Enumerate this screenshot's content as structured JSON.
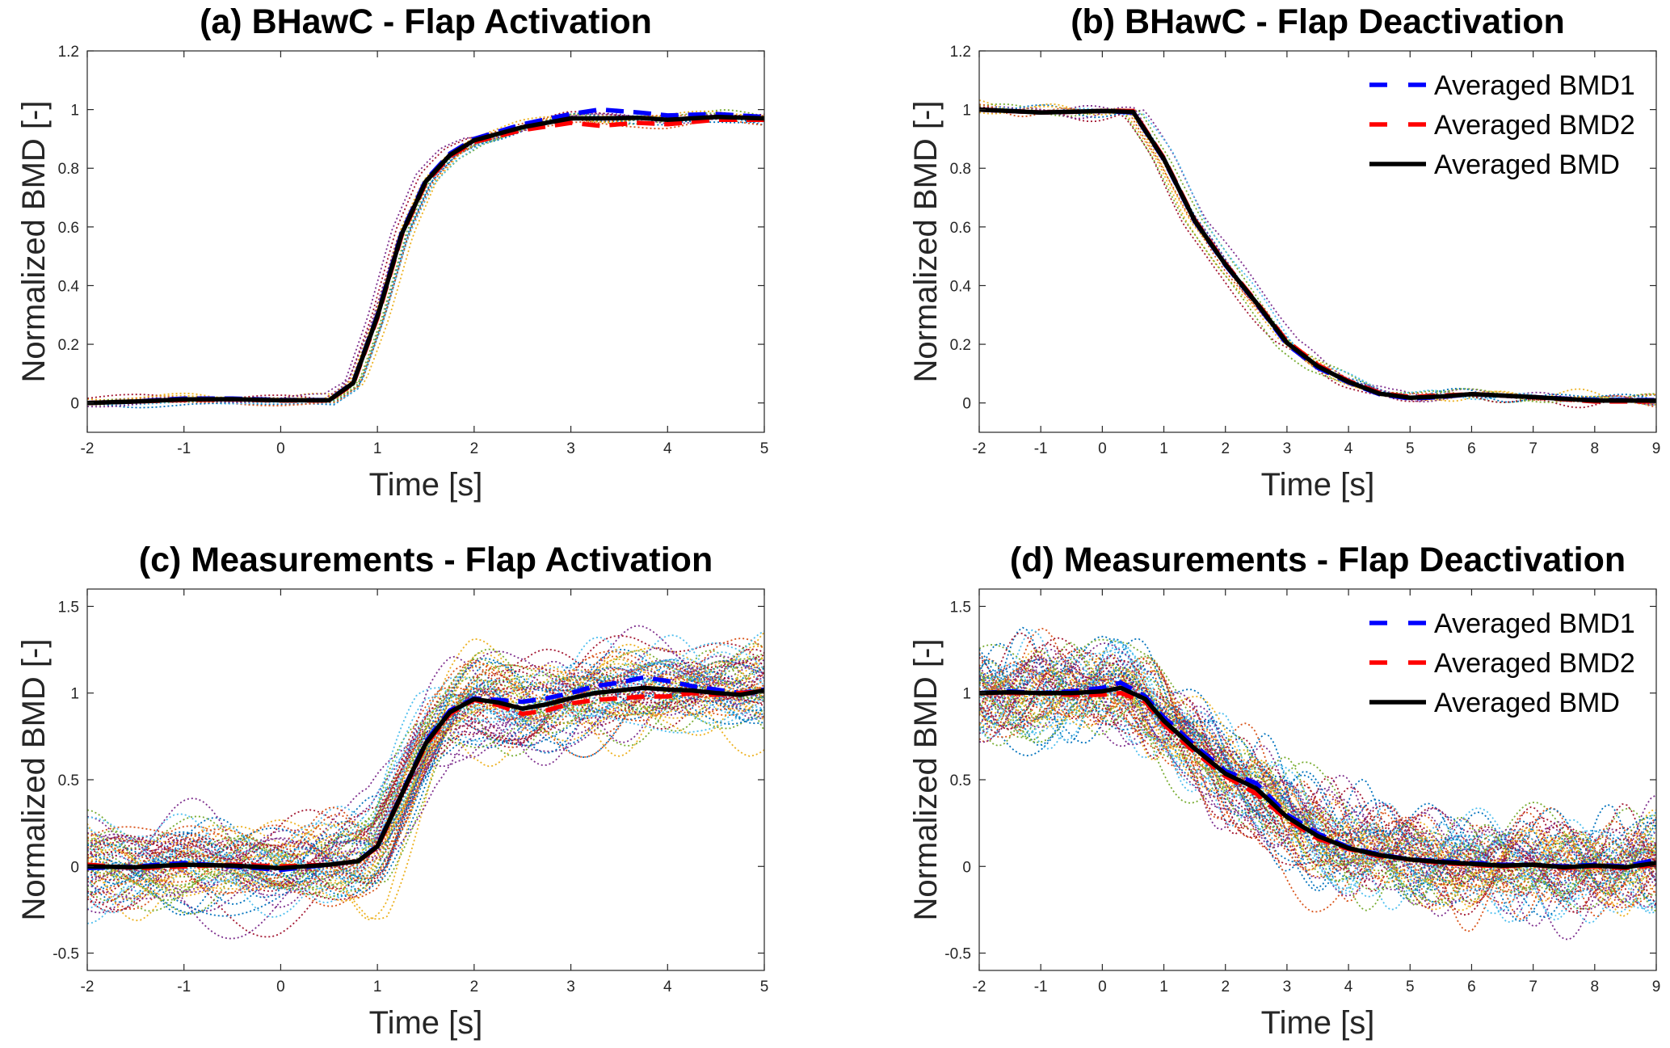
{
  "figure": {
    "colors": {
      "bmd1": "#0000ff",
      "bmd2": "#ff0000",
      "bmd": "#000000",
      "palette": [
        "#0072BD",
        "#D95319",
        "#EDB120",
        "#7E2F8E",
        "#77AC30",
        "#4DBEEE",
        "#A2142F"
      ]
    }
  },
  "chart_data": [
    {
      "id": "a",
      "type": "line",
      "title": "(a) BHawC - Flap Activation",
      "xlabel": "Time [s]",
      "ylabel": "Normalized BMD [-]",
      "xlim": [
        -2,
        5
      ],
      "ylim": [
        -0.1,
        1.2
      ],
      "xticks": [
        -2,
        -1,
        0,
        1,
        2,
        3,
        4,
        5
      ],
      "yticks": [
        0,
        0.2,
        0.4,
        0.6,
        0.8,
        1,
        1.2
      ],
      "legend": null,
      "series": [
        {
          "name": "Averaged BMD1",
          "style": "dashed",
          "color": "#0000ff",
          "x": [
            -2,
            -1.5,
            -1,
            -0.5,
            0,
            0.5,
            0.75,
            1,
            1.25,
            1.5,
            1.75,
            2,
            2.5,
            3,
            3.3,
            3.7,
            4,
            4.5,
            5
          ],
          "y": [
            0,
            0.005,
            0.015,
            0.015,
            0.01,
            0.01,
            0.07,
            0.3,
            0.58,
            0.76,
            0.85,
            0.9,
            0.95,
            0.985,
            1.0,
            0.99,
            0.98,
            0.985,
            0.975
          ]
        },
        {
          "name": "Averaged BMD2",
          "style": "dashed",
          "color": "#ff0000",
          "x": [
            -2,
            -1.5,
            -1,
            -0.5,
            0,
            0.5,
            0.75,
            1,
            1.25,
            1.5,
            1.75,
            2,
            2.5,
            3,
            3.3,
            3.7,
            4,
            4.5,
            5
          ],
          "y": [
            0,
            0.005,
            0.01,
            0.012,
            0.008,
            0.008,
            0.065,
            0.29,
            0.57,
            0.75,
            0.84,
            0.89,
            0.93,
            0.955,
            0.945,
            0.955,
            0.95,
            0.965,
            0.965
          ]
        },
        {
          "name": "Averaged BMD",
          "style": "solid",
          "color": "#000000",
          "x": [
            -2,
            -1.5,
            -1,
            -0.5,
            0,
            0.5,
            0.75,
            1,
            1.25,
            1.5,
            1.75,
            2,
            2.5,
            3,
            3.3,
            3.7,
            4,
            4.5,
            5
          ],
          "y": [
            0,
            0.005,
            0.012,
            0.013,
            0.009,
            0.009,
            0.068,
            0.295,
            0.575,
            0.755,
            0.845,
            0.895,
            0.94,
            0.97,
            0.97,
            0.972,
            0.965,
            0.975,
            0.97
          ]
        }
      ],
      "individual_runs": {
        "count": 12,
        "style": "dotted",
        "noise": 0.025,
        "follows": "Averaged BMD"
      }
    },
    {
      "id": "b",
      "type": "line",
      "title": "(b) BHawC - Flap Deactivation",
      "xlabel": "Time [s]",
      "ylabel": "Normalized BMD [-]",
      "xlim": [
        -2,
        9
      ],
      "ylim": [
        -0.1,
        1.2
      ],
      "xticks": [
        -2,
        -1,
        0,
        1,
        2,
        3,
        4,
        5,
        6,
        7,
        8,
        9
      ],
      "yticks": [
        0,
        0.2,
        0.4,
        0.6,
        0.8,
        1,
        1.2
      ],
      "legend": "top-right",
      "series": [
        {
          "name": "Averaged BMD1",
          "style": "dashed",
          "color": "#0000ff",
          "x": [
            -2,
            -1,
            0,
            0.5,
            1,
            1.5,
            2,
            2.5,
            3,
            3.5,
            4,
            4.5,
            5,
            5.5,
            6,
            7,
            8,
            9
          ],
          "y": [
            1.0,
            0.99,
            0.995,
            0.99,
            0.83,
            0.62,
            0.47,
            0.34,
            0.2,
            0.12,
            0.07,
            0.03,
            0.015,
            0.02,
            0.03,
            0.02,
            0.01,
            0.01
          ]
        },
        {
          "name": "Averaged BMD2",
          "style": "dashed",
          "color": "#ff0000",
          "x": [
            -2,
            -1,
            0,
            0.5,
            1,
            1.5,
            2,
            2.5,
            3,
            3.5,
            4,
            4.5,
            5,
            5.5,
            6,
            7,
            8,
            9
          ],
          "y": [
            1.0,
            0.99,
            0.995,
            0.995,
            0.835,
            0.625,
            0.475,
            0.345,
            0.21,
            0.13,
            0.075,
            0.035,
            0.02,
            0.025,
            0.03,
            0.02,
            0.005,
            0.005
          ]
        },
        {
          "name": "Averaged BMD",
          "style": "solid",
          "color": "#000000",
          "x": [
            -2,
            -1,
            0,
            0.5,
            1,
            1.5,
            2,
            2.5,
            3,
            3.5,
            4,
            4.5,
            5,
            5.5,
            6,
            7,
            8,
            9
          ],
          "y": [
            1.0,
            0.99,
            0.995,
            0.992,
            0.832,
            0.622,
            0.472,
            0.342,
            0.205,
            0.125,
            0.072,
            0.032,
            0.018,
            0.022,
            0.03,
            0.02,
            0.008,
            0.008
          ]
        }
      ],
      "individual_runs": {
        "count": 12,
        "style": "dotted",
        "noise": 0.025,
        "follows": "Averaged BMD"
      }
    },
    {
      "id": "c",
      "type": "line",
      "title": "(c) Measurements - Flap Activation",
      "xlabel": "Time [s]",
      "ylabel": "Normalized BMD [-]",
      "xlim": [
        -2,
        5
      ],
      "ylim": [
        -0.6,
        1.6
      ],
      "xticks": [
        -2,
        -1,
        0,
        1,
        2,
        3,
        4,
        5
      ],
      "yticks": [
        -0.5,
        0,
        0.5,
        1,
        1.5
      ],
      "legend": null,
      "series": [
        {
          "name": "Averaged BMD1",
          "style": "dashed",
          "color": "#0000ff",
          "x": [
            -2,
            -1.5,
            -1,
            -0.5,
            0,
            0.5,
            0.8,
            1,
            1.25,
            1.5,
            1.75,
            2,
            2.25,
            2.5,
            2.75,
            3,
            3.25,
            3.5,
            3.75,
            4,
            4.25,
            4.5,
            4.75,
            5
          ],
          "y": [
            -0.01,
            0.0,
            0.02,
            0.0,
            -0.02,
            0.01,
            0.03,
            0.12,
            0.42,
            0.72,
            0.9,
            0.97,
            0.96,
            0.95,
            0.97,
            1.0,
            1.04,
            1.06,
            1.09,
            1.07,
            1.04,
            1.02,
            1.0,
            1.02
          ]
        },
        {
          "name": "Averaged BMD2",
          "style": "dashed",
          "color": "#ff0000",
          "x": [
            -2,
            -1.5,
            -1,
            -0.5,
            0,
            0.5,
            0.8,
            1,
            1.25,
            1.5,
            1.75,
            2,
            2.25,
            2.5,
            2.75,
            3,
            3.25,
            3.5,
            3.75,
            4,
            4.25,
            4.5,
            4.75,
            5
          ],
          "y": [
            0.01,
            -0.01,
            0.0,
            0.01,
            0.0,
            0.01,
            0.03,
            0.11,
            0.41,
            0.7,
            0.88,
            0.96,
            0.93,
            0.88,
            0.9,
            0.94,
            0.96,
            0.97,
            0.98,
            0.98,
            1.0,
            0.99,
            1.0,
            1.01
          ]
        },
        {
          "name": "Averaged BMD",
          "style": "solid",
          "color": "#000000",
          "x": [
            -2,
            -1.5,
            -1,
            -0.5,
            0,
            0.5,
            0.8,
            1,
            1.25,
            1.5,
            1.75,
            2,
            2.25,
            2.5,
            2.75,
            3,
            3.25,
            3.5,
            3.75,
            4,
            4.25,
            4.5,
            4.75,
            5
          ],
          "y": [
            0.0,
            -0.005,
            0.01,
            0.005,
            -0.01,
            0.01,
            0.03,
            0.115,
            0.415,
            0.71,
            0.89,
            0.965,
            0.945,
            0.91,
            0.935,
            0.97,
            1.0,
            1.015,
            1.03,
            1.02,
            1.015,
            1.0,
            0.99,
            1.015
          ]
        }
      ],
      "individual_runs": {
        "count": 70,
        "style": "dotted",
        "noise": 0.28,
        "follows": "Averaged BMD"
      }
    },
    {
      "id": "d",
      "type": "line",
      "title": "(d) Measurements - Flap Deactivation",
      "xlabel": "Time [s]",
      "ylabel": "Normalized BMD [-]",
      "xlim": [
        -2,
        9
      ],
      "ylim": [
        -0.6,
        1.6
      ],
      "xticks": [
        -2,
        -1,
        0,
        1,
        2,
        3,
        4,
        5,
        6,
        7,
        8,
        9
      ],
      "yticks": [
        -0.5,
        0,
        0.5,
        1,
        1.5
      ],
      "legend": "top-right",
      "series": [
        {
          "name": "Averaged BMD1",
          "style": "dashed",
          "color": "#0000ff",
          "x": [
            -2,
            -1.5,
            -1,
            -0.5,
            0,
            0.3,
            0.7,
            1,
            1.5,
            2,
            2.5,
            3,
            3.5,
            4,
            4.5,
            5,
            5.5,
            6,
            6.5,
            7,
            7.5,
            8,
            8.5,
            9
          ],
          "y": [
            1.0,
            1.01,
            1.0,
            1.01,
            1.03,
            1.06,
            0.98,
            0.86,
            0.7,
            0.55,
            0.48,
            0.3,
            0.19,
            0.11,
            0.07,
            0.04,
            0.03,
            0.02,
            0.01,
            0.01,
            0.0,
            0.01,
            0.0,
            0.04
          ]
        },
        {
          "name": "Averaged BMD2",
          "style": "dashed",
          "color": "#ff0000",
          "x": [
            -2,
            -1.5,
            -1,
            -0.5,
            0,
            0.3,
            0.7,
            1,
            1.5,
            2,
            2.5,
            3,
            3.5,
            4,
            4.5,
            5,
            5.5,
            6,
            6.5,
            7,
            7.5,
            8,
            8.5,
            9
          ],
          "y": [
            1.0,
            1.0,
            1.0,
            0.99,
            0.99,
            1.0,
            0.95,
            0.82,
            0.66,
            0.52,
            0.42,
            0.27,
            0.16,
            0.1,
            0.06,
            0.04,
            0.02,
            0.01,
            0.0,
            0.01,
            -0.01,
            0.0,
            -0.01,
            0.01
          ]
        },
        {
          "name": "Averaged BMD",
          "style": "solid",
          "color": "#000000",
          "x": [
            -2,
            -1.5,
            -1,
            -0.5,
            0,
            0.3,
            0.7,
            1,
            1.5,
            2,
            2.5,
            3,
            3.5,
            4,
            4.5,
            5,
            5.5,
            6,
            6.5,
            7,
            7.5,
            8,
            8.5,
            9
          ],
          "y": [
            1.0,
            1.005,
            1.0,
            1.0,
            1.01,
            1.03,
            0.965,
            0.84,
            0.68,
            0.535,
            0.45,
            0.285,
            0.175,
            0.105,
            0.065,
            0.04,
            0.025,
            0.015,
            0.005,
            0.01,
            -0.005,
            0.005,
            -0.005,
            0.02
          ]
        }
      ],
      "individual_runs": {
        "count": 70,
        "style": "dotted",
        "noise": 0.28,
        "follows": "Averaged BMD"
      }
    }
  ]
}
